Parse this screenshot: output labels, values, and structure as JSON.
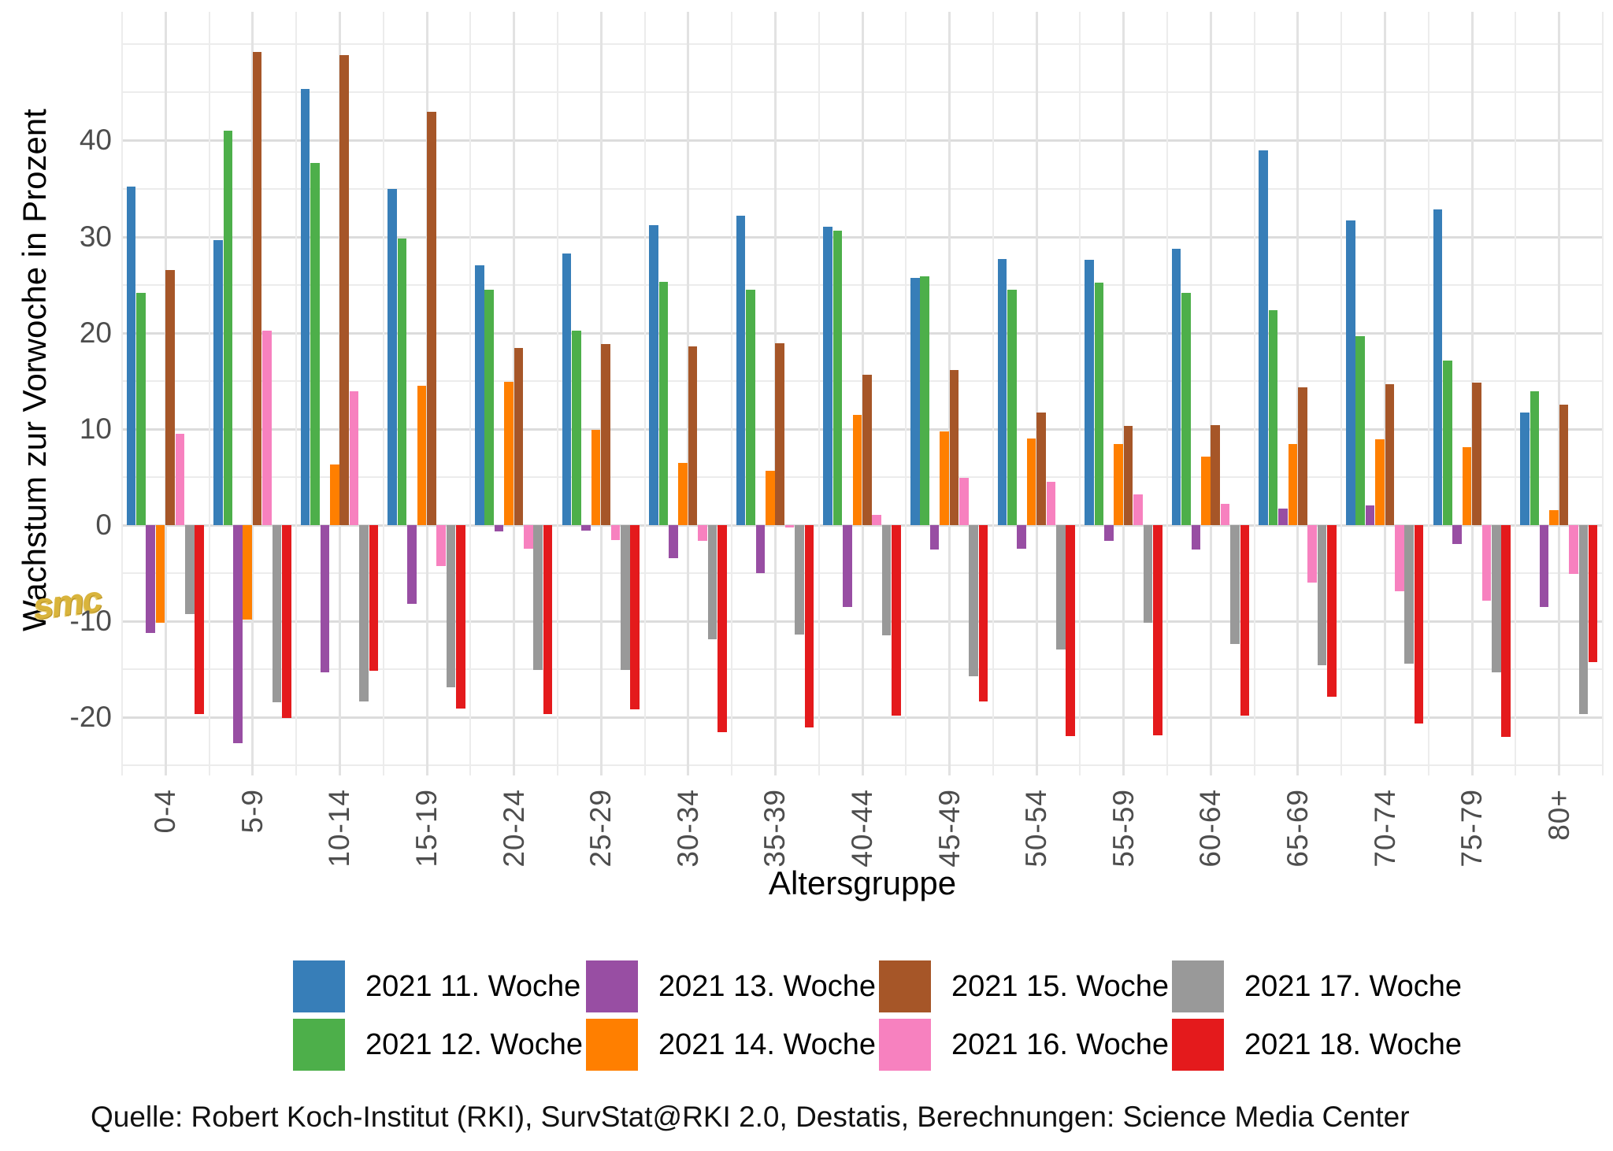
{
  "figure": {
    "ylabel": "Wachstum zur Vorwoche in Prozent",
    "xlabel": "Altersgruppe",
    "footer": "Quelle: Robert Koch-Institut (RKI), SurvStat@RKI 2.0, Destatis, Berechnungen: Science Media Center",
    "watermark": "smc"
  },
  "chart_data": {
    "type": "bar",
    "title": "",
    "xlabel": "Altersgruppe",
    "ylabel": "Wachstum zur Vorwoche in Prozent",
    "categories": [
      "0-4",
      "5-9",
      "10-14",
      "15-19",
      "20-24",
      "25-29",
      "30-34",
      "35-39",
      "40-44",
      "45-49",
      "50-54",
      "55-59",
      "60-64",
      "65-69",
      "70-74",
      "75-79",
      "80+"
    ],
    "yticks": [
      40,
      30,
      20,
      10,
      0,
      -10,
      -20
    ],
    "ylim": [
      -26.1,
      53.4
    ],
    "grid": "on",
    "legend_position": "bottom",
    "series": [
      {
        "name": "2021 11. Woche",
        "color": "#377EB8",
        "values": [
          35.2,
          29.6,
          45.4,
          35.0,
          27.0,
          28.2,
          31.2,
          32.2,
          31.0,
          25.7,
          27.7,
          27.6,
          28.7,
          39.0,
          31.7,
          32.8,
          11.7
        ]
      },
      {
        "name": "2021 12. Woche",
        "color": "#4DAF4A",
        "values": [
          24.1,
          41.0,
          37.7,
          29.8,
          24.5,
          20.2,
          25.3,
          24.5,
          30.6,
          25.9,
          24.5,
          25.2,
          24.1,
          22.3,
          19.6,
          17.1,
          13.9
        ]
      },
      {
        "name": "2021 13. Woche",
        "color": "#984EA3",
        "values": [
          -11.3,
          -22.7,
          -15.4,
          -8.2,
          -0.7,
          -0.6,
          -3.5,
          -5.0,
          -8.6,
          -2.6,
          -2.5,
          -1.7,
          -2.6,
          1.7,
          2.0,
          -2.0,
          -8.6
        ]
      },
      {
        "name": "2021 14. Woche",
        "color": "#FF7F00",
        "values": [
          -10.2,
          -9.9,
          6.3,
          14.5,
          14.9,
          9.9,
          6.4,
          5.6,
          11.4,
          9.7,
          9.0,
          8.4,
          7.1,
          8.4,
          8.9,
          8.1,
          1.5
        ]
      },
      {
        "name": "2021 15. Woche",
        "color": "#A65628",
        "values": [
          26.5,
          49.2,
          48.9,
          43.0,
          18.4,
          18.8,
          18.6,
          18.9,
          15.6,
          16.1,
          11.7,
          10.3,
          10.4,
          14.3,
          14.6,
          14.8,
          12.5
        ]
      },
      {
        "name": "2021 16. Woche",
        "color": "#F781BF",
        "values": [
          9.5,
          20.2,
          13.9,
          -4.3,
          -2.5,
          -1.6,
          -1.7,
          -0.3,
          1.0,
          4.9,
          4.5,
          3.2,
          2.2,
          -6.0,
          -6.9,
          -7.9,
          -5.1
        ]
      },
      {
        "name": "2021 17. Woche",
        "color": "#999999",
        "values": [
          -9.3,
          -18.5,
          -18.4,
          -16.9,
          -15.1,
          -15.1,
          -11.9,
          -11.4,
          -11.5,
          -15.8,
          -13.0,
          -10.2,
          -12.4,
          -14.6,
          -14.5,
          -15.4,
          -19.7
        ]
      },
      {
        "name": "2021 18. Woche",
        "color": "#E41A1C",
        "values": [
          -19.7,
          -20.1,
          -15.2,
          -19.1,
          -19.7,
          -19.2,
          -21.6,
          -21.1,
          -19.9,
          -18.4,
          -22.0,
          -21.9,
          -19.9,
          -17.9,
          -20.7,
          -22.1,
          -14.3
        ]
      }
    ]
  }
}
